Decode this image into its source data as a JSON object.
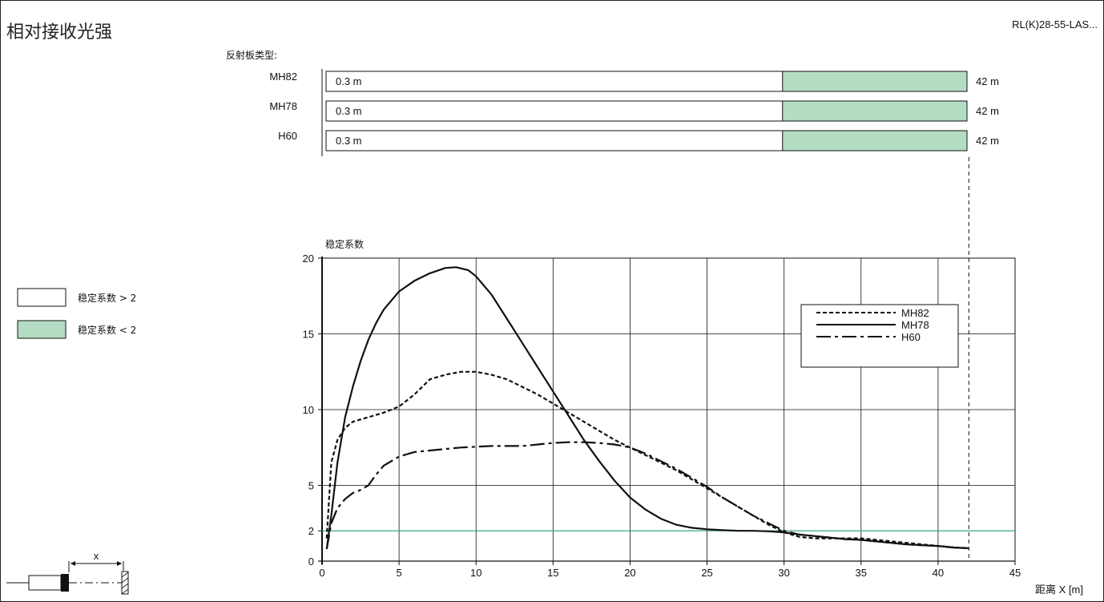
{
  "title": "相对接收光强",
  "model": "RL(K)28-55-LAS...",
  "reflector": {
    "heading": "反射板类型:",
    "rows": [
      {
        "name": "MH82",
        "min_label": "0.3 m",
        "max_label": "42 m",
        "min_m": 0.3,
        "max_m": 42,
        "green_from_m": 30
      },
      {
        "name": "MH78",
        "min_label": "0.3 m",
        "max_label": "42 m",
        "min_m": 0.3,
        "max_m": 42,
        "green_from_m": 30
      },
      {
        "name": "H60",
        "min_label": "0.3 m",
        "max_label": "42 m",
        "min_m": 0.3,
        "max_m": 42,
        "green_from_m": 30
      }
    ]
  },
  "legend_key": {
    "items": [
      {
        "label": "稳定系数 > 2",
        "color": "#ffffff"
      },
      {
        "label": "稳定系数 < 2",
        "color": "#b3ddc3"
      }
    ]
  },
  "colors": {
    "green_fill": "#b3ddc3",
    "threshold_line": "#2e9e6e",
    "ink": "#111111"
  },
  "diagram": {
    "x_label": "x"
  },
  "chart_data": {
    "type": "line",
    "ylabel": "稳定系数",
    "xlabel": "距离 X [m]",
    "xlim": [
      0,
      45
    ],
    "ylim": [
      0,
      20
    ],
    "xticks": [
      0,
      5,
      10,
      15,
      20,
      25,
      30,
      35,
      40,
      45
    ],
    "yticks": [
      0,
      2,
      5,
      10,
      15,
      20
    ],
    "grid": true,
    "threshold": 2,
    "marker_x": 42,
    "legend_position": "top-right",
    "series": [
      {
        "name": "MH82",
        "style": "dashed",
        "x": [
          0.3,
          0.6,
          1,
          1.5,
          2,
          3,
          4,
          5,
          6,
          7,
          8,
          9,
          10,
          11,
          12,
          13,
          14,
          15,
          16,
          17,
          18,
          19,
          20,
          21,
          22,
          23,
          24,
          25,
          26,
          27,
          28,
          29,
          30,
          31,
          32,
          33,
          34,
          35,
          36,
          37,
          38,
          39,
          40,
          41,
          42
        ],
        "y": [
          1.5,
          6.5,
          8,
          8.8,
          9.2,
          9.5,
          9.8,
          10.2,
          11,
          12,
          12.3,
          12.5,
          12.5,
          12.3,
          12,
          11.5,
          11,
          10.4,
          9.8,
          9.2,
          8.6,
          8,
          7.5,
          7,
          6.5,
          6,
          5.4,
          4.8,
          4.2,
          3.6,
          3,
          2.4,
          1.9,
          1.6,
          1.5,
          1.5,
          1.5,
          1.5,
          1.4,
          1.3,
          1.2,
          1.1,
          1.0,
          0.9,
          0.85
        ]
      },
      {
        "name": "MH78",
        "style": "solid",
        "x": [
          0.3,
          0.6,
          1,
          1.5,
          2,
          2.5,
          3,
          3.5,
          4,
          5,
          6,
          7,
          8,
          8.7,
          9.5,
          10,
          11,
          12,
          13,
          14,
          15,
          16,
          17,
          18,
          19,
          20,
          21,
          22,
          23,
          24,
          25,
          26,
          27,
          28,
          29,
          30,
          31,
          32,
          33,
          34,
          35,
          36,
          37,
          38,
          39,
          40,
          41,
          42
        ],
        "y": [
          0.8,
          3,
          6.5,
          9.5,
          11.5,
          13.2,
          14.6,
          15.7,
          16.6,
          17.8,
          18.5,
          19,
          19.35,
          19.4,
          19.2,
          18.8,
          17.6,
          16,
          14.4,
          12.8,
          11.2,
          9.6,
          8,
          6.6,
          5.3,
          4.2,
          3.4,
          2.8,
          2.4,
          2.2,
          2.1,
          2.05,
          2.0,
          2.0,
          1.97,
          1.9,
          1.75,
          1.65,
          1.55,
          1.45,
          1.4,
          1.3,
          1.2,
          1.1,
          1.05,
          1.0,
          0.9,
          0.85
        ]
      },
      {
        "name": "H60",
        "style": "dash-dot",
        "x": [
          0.3,
          0.6,
          1,
          1.5,
          2,
          2.5,
          3,
          3.5,
          4,
          5,
          6,
          7,
          8,
          9,
          10,
          11,
          12,
          13,
          14,
          15,
          16,
          17,
          18,
          19,
          20,
          21,
          22,
          23,
          24,
          25,
          26,
          27,
          28,
          29,
          30,
          31,
          32,
          33,
          34,
          35,
          36,
          37,
          38,
          39,
          40,
          41,
          42
        ],
        "y": [
          0.8,
          2.5,
          3.5,
          4.1,
          4.5,
          4.7,
          5,
          5.7,
          6.3,
          6.9,
          7.2,
          7.3,
          7.4,
          7.5,
          7.55,
          7.6,
          7.6,
          7.6,
          7.7,
          7.8,
          7.85,
          7.85,
          7.8,
          7.7,
          7.5,
          7.1,
          6.6,
          6.1,
          5.5,
          4.9,
          4.2,
          3.6,
          3.0,
          2.5,
          2.0,
          1.75,
          1.65,
          1.55,
          1.45,
          1.4,
          1.3,
          1.2,
          1.1,
          1.05,
          1.0,
          0.9,
          0.85
        ]
      }
    ]
  }
}
